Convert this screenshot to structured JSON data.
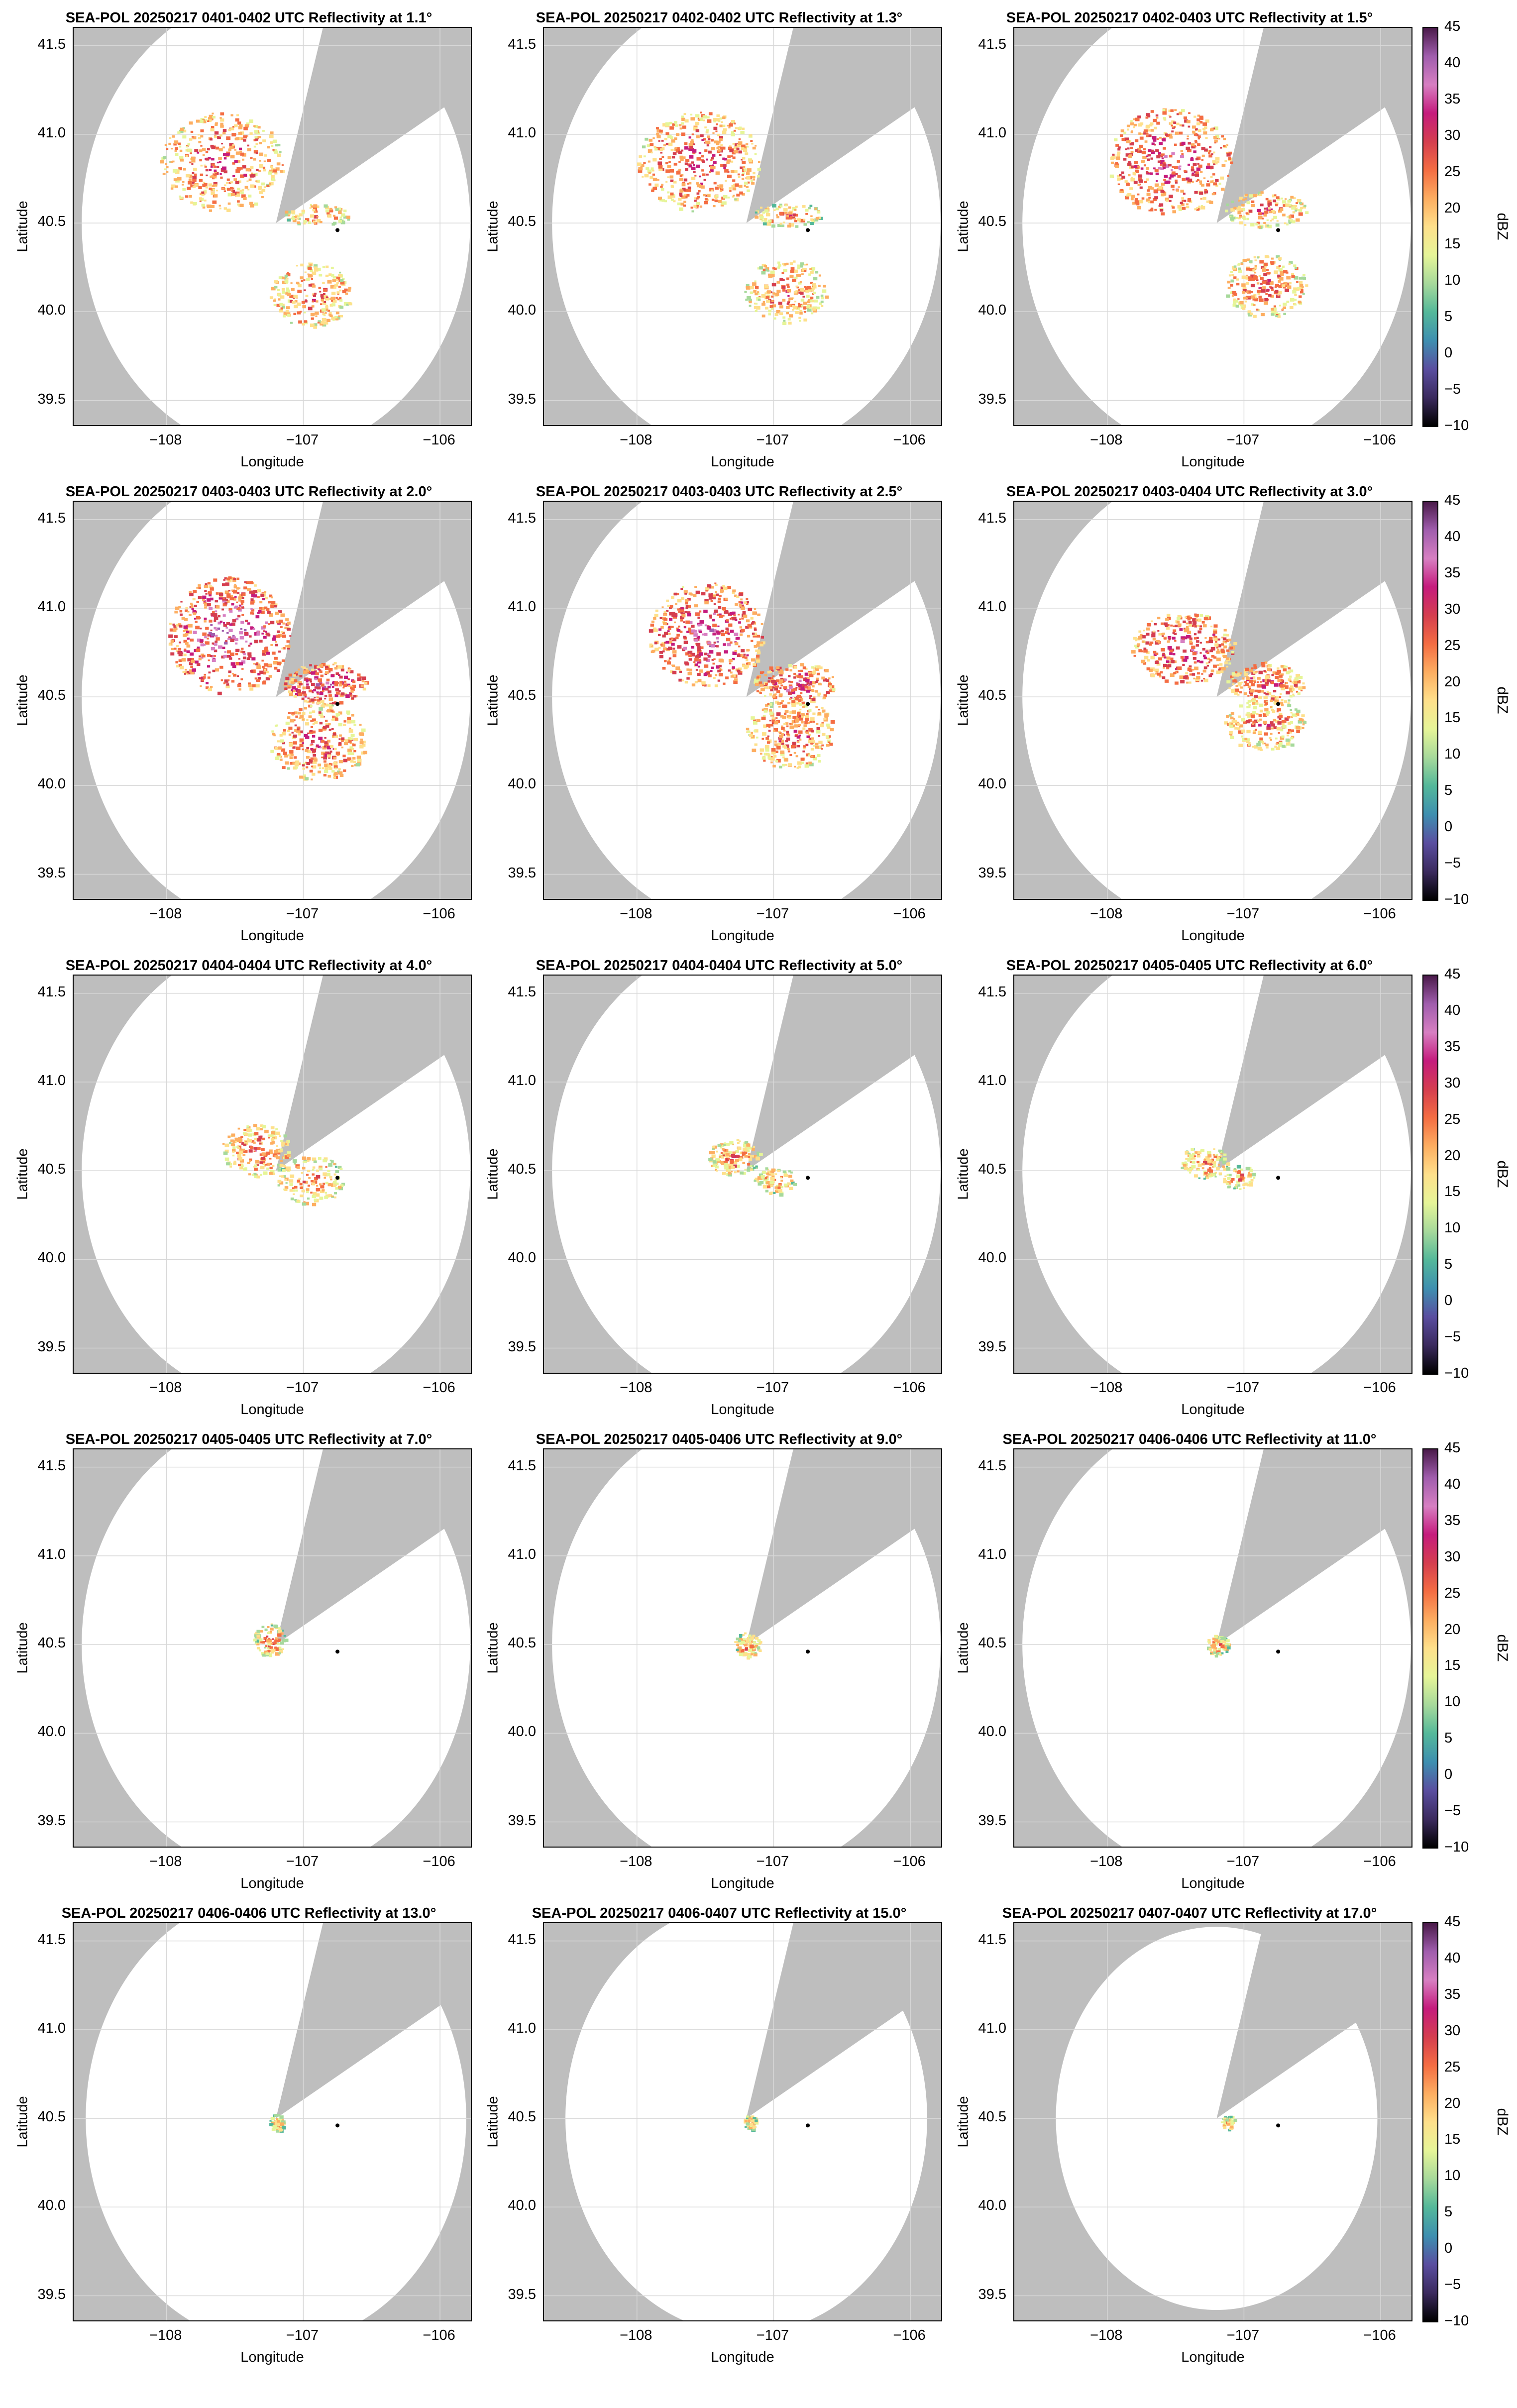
{
  "chart_data": {
    "type": "heatmap",
    "description_units": {
      "x": "degrees longitude",
      "y": "degrees latitude"
    },
    "xlabel": "Longitude",
    "ylabel": "Latitude",
    "xlim": [
      -108.68,
      -105.76
    ],
    "ylim": [
      39.35,
      41.6
    ],
    "xticks": [
      -108,
      -107,
      -106
    ],
    "xtick_labels": [
      "−108",
      "−107",
      "−106"
    ],
    "yticks": [
      39.5,
      40.0,
      40.5,
      41.0,
      41.5
    ],
    "ytick_labels": [
      "39.5",
      "40.0",
      "40.5",
      "41.0",
      "41.5"
    ],
    "radar_location": [
      -107.2,
      40.5
    ],
    "marker_location": [
      -106.75,
      40.46
    ],
    "blocked_sector_azimuths_deg": [
      [
        16,
        60
      ]
    ],
    "grid": true,
    "colorbar": {
      "label": "dBZ",
      "range": [
        -10,
        45
      ],
      "ticks": [
        -10,
        -5,
        0,
        5,
        10,
        15,
        20,
        25,
        30,
        35,
        40,
        45
      ],
      "tick_labels": [
        "−10",
        "−5",
        "0",
        "5",
        "10",
        "15",
        "20",
        "25",
        "30",
        "35",
        "40",
        "45"
      ],
      "colormap": [
        "#000000",
        "#3b2a5e",
        "#5a4ea0",
        "#3e8fb0",
        "#54b89a",
        "#a6d99b",
        "#e6f598",
        "#fee08b",
        "#fdae61",
        "#f46d43",
        "#d53e4f",
        "#c51b7d",
        "#d77fc2",
        "#a05dad",
        "#4a1a4a"
      ]
    },
    "panels": [
      {
        "title": "SEA-POL 20250217 0401-0402 UTC Reflectivity at 1.1°",
        "elevation_deg": 1.1,
        "max_range_deg": 1.45,
        "echo_extent": "broad: north-west cluster up to 41.2N, south-east band to 39.95N"
      },
      {
        "title": "SEA-POL 20250217 0402-0402 UTC Reflectivity at 1.3°",
        "elevation_deg": 1.3,
        "max_range_deg": 1.45,
        "echo_extent": "broad: north-west cluster, south-east band"
      },
      {
        "title": "SEA-POL 20250217 0402-0403 UTC Reflectivity at 1.5°",
        "elevation_deg": 1.5,
        "max_range_deg": 1.45,
        "echo_extent": "broad: north-west cluster, south-east band"
      },
      {
        "title": "SEA-POL 20250217 0403-0403 UTC Reflectivity at 2.0°",
        "elevation_deg": 2.0,
        "max_range_deg": 1.45,
        "echo_extent": "widespread, cores near 35 dBZ"
      },
      {
        "title": "SEA-POL 20250217 0403-0403 UTC Reflectivity at 2.5°",
        "elevation_deg": 2.5,
        "max_range_deg": 1.45,
        "echo_extent": "widespread"
      },
      {
        "title": "SEA-POL 20250217 0403-0404 UTC Reflectivity at 3.0°",
        "elevation_deg": 3.0,
        "max_range_deg": 1.45,
        "echo_extent": "medium"
      },
      {
        "title": "SEA-POL 20250217 0404-0404 UTC Reflectivity at 4.0°",
        "elevation_deg": 4.0,
        "max_range_deg": 1.45,
        "echo_extent": "medium-small"
      },
      {
        "title": "SEA-POL 20250217 0404-0404 UTC Reflectivity at 5.0°",
        "elevation_deg": 5.0,
        "max_range_deg": 1.45,
        "echo_extent": "small"
      },
      {
        "title": "SEA-POL 20250217 0405-0405 UTC Reflectivity at 6.0°",
        "elevation_deg": 6.0,
        "max_range_deg": 1.45,
        "echo_extent": "small"
      },
      {
        "title": "SEA-POL 20250217 0405-0405 UTC Reflectivity at 7.0°",
        "elevation_deg": 7.0,
        "max_range_deg": 1.45,
        "echo_extent": "small"
      },
      {
        "title": "SEA-POL 20250217 0405-0406 UTC Reflectivity at 9.0°",
        "elevation_deg": 9.0,
        "max_range_deg": 1.45,
        "echo_extent": "very small"
      },
      {
        "title": "SEA-POL 20250217 0406-0406 UTC Reflectivity at 11.0°",
        "elevation_deg": 11.0,
        "max_range_deg": 1.45,
        "echo_extent": "very small"
      },
      {
        "title": "SEA-POL 20250217 0406-0406 UTC Reflectivity at 13.0°",
        "elevation_deg": 13.0,
        "max_range_deg": 1.42,
        "echo_extent": "ring near radar"
      },
      {
        "title": "SEA-POL 20250217 0406-0407 UTC Reflectivity at 15.0°",
        "elevation_deg": 15.0,
        "max_range_deg": 1.35,
        "echo_extent": "ring near radar"
      },
      {
        "title": "SEA-POL 20250217 0407-0407 UTC Reflectivity at 17.0°",
        "elevation_deg": 17.0,
        "max_range_deg": 1.2,
        "echo_extent": "ring near radar"
      }
    ]
  }
}
